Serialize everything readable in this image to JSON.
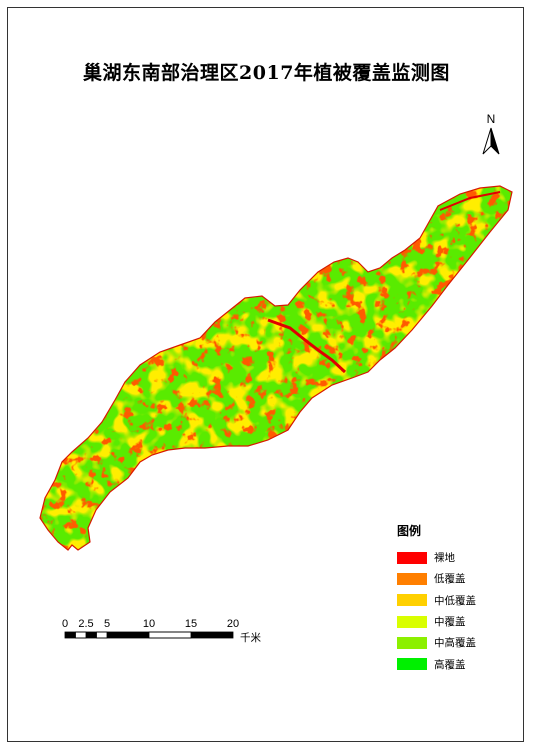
{
  "title": "巢湖东南部治理区2017年植被覆盖监测图",
  "north_arrow": {
    "label": "N"
  },
  "legend": {
    "title": "图例",
    "items": [
      {
        "label": "裸地",
        "color": "#ff0000"
      },
      {
        "label": "低覆盖",
        "color": "#ff7f00"
      },
      {
        "label": "中低覆盖",
        "color": "#ffd000"
      },
      {
        "label": "中覆盖",
        "color": "#d9ff00"
      },
      {
        "label": "中高覆盖",
        "color": "#8cf000"
      },
      {
        "label": "高覆盖",
        "color": "#00f000"
      }
    ]
  },
  "scale_bar": {
    "ticks": [
      "0",
      "2.5",
      "5",
      "10",
      "15",
      "20"
    ],
    "unit": "千米"
  }
}
